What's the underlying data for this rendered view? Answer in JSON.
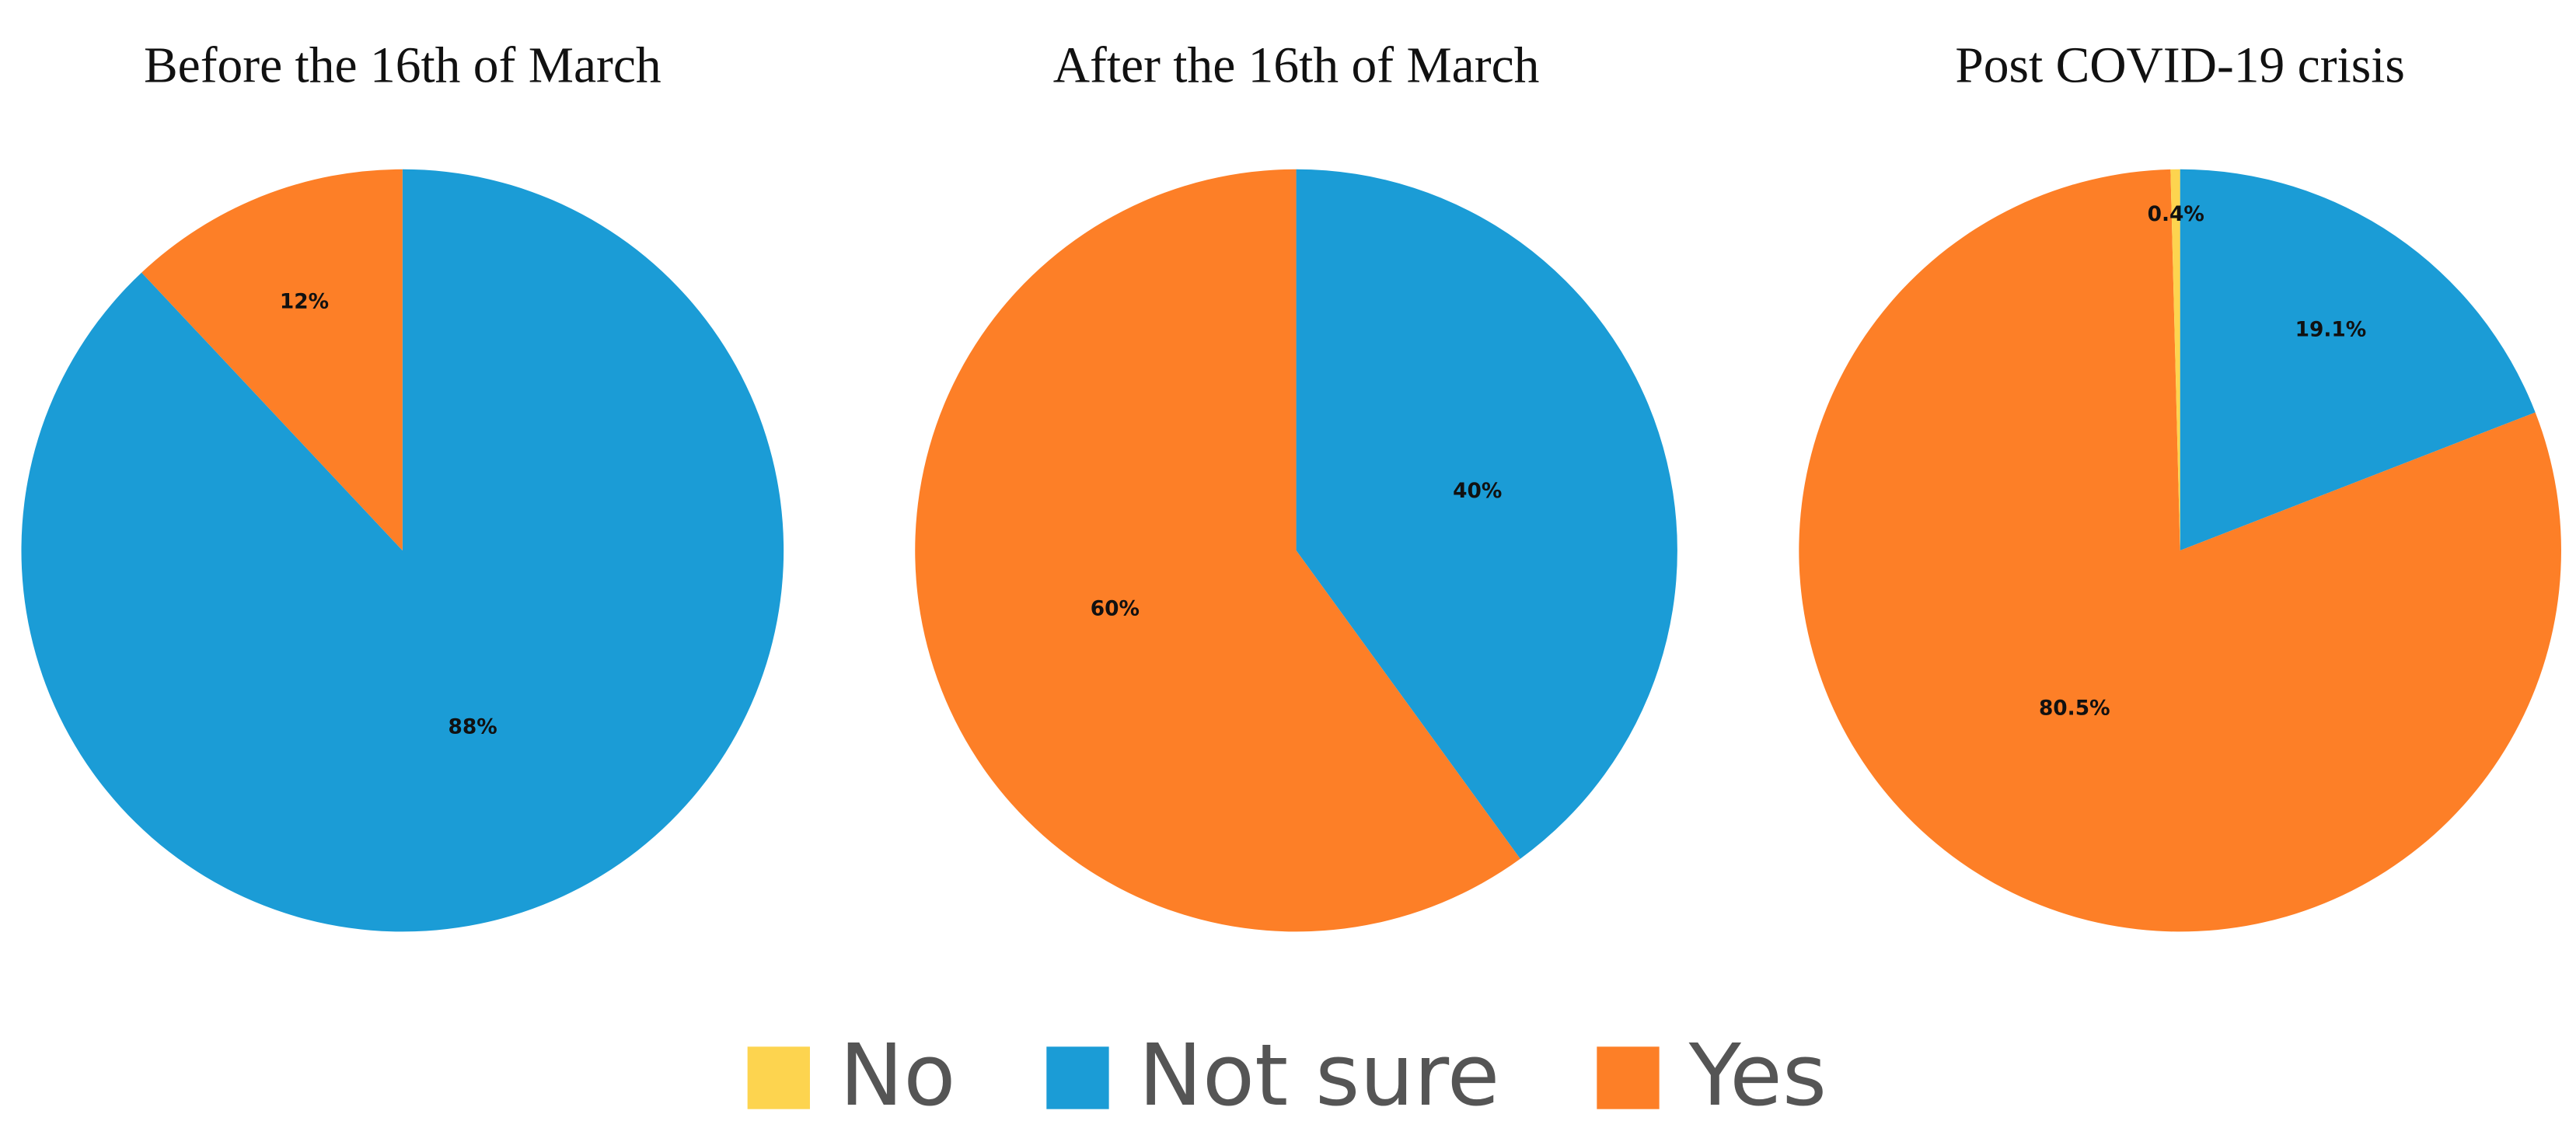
{
  "chart_data": [
    {
      "type": "pie",
      "title": "Before the 16th of March",
      "categories": [
        "Not sure",
        "Yes"
      ],
      "values": [
        88,
        12
      ],
      "value_labels": [
        "88%",
        "12%"
      ]
    },
    {
      "type": "pie",
      "title": "After the 16th of March",
      "categories": [
        "Not sure",
        "Yes"
      ],
      "values": [
        40,
        60
      ],
      "value_labels": [
        "40%",
        "60%"
      ]
    },
    {
      "type": "pie",
      "title": "Post COVID-19 crisis",
      "categories": [
        "Not sure",
        "Yes",
        "No"
      ],
      "values": [
        19.1,
        80.5,
        0.4
      ],
      "value_labels": [
        "19.1%",
        "80.5%",
        "0.4%"
      ]
    }
  ],
  "legend": [
    {
      "name": "No",
      "color": "#fdd44f"
    },
    {
      "name": "Not sure",
      "color": "#1b9cd6"
    },
    {
      "name": "Yes",
      "color": "#fd7f27"
    }
  ]
}
